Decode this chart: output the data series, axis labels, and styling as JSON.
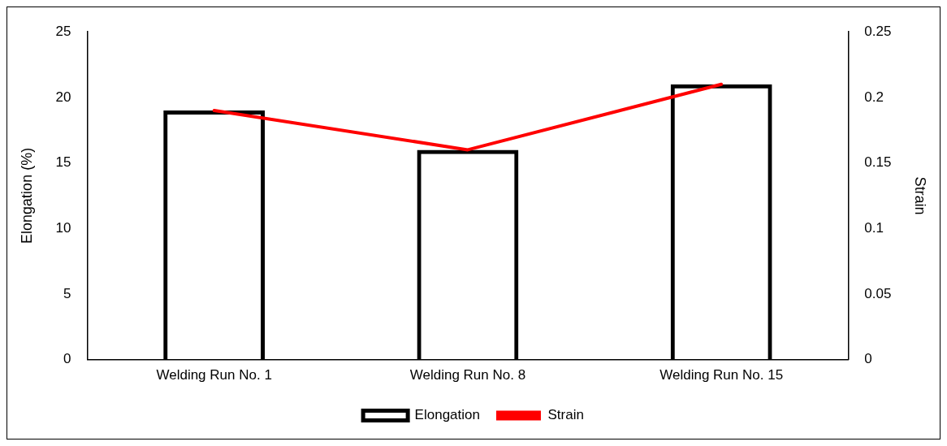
{
  "chart_data": {
    "type": "bar",
    "categories": [
      "Welding Run No. 1",
      "Welding Run No. 8",
      "Welding Run No. 15"
    ],
    "series": [
      {
        "name": "Elongation",
        "color": "#000000",
        "values": [
          19,
          16,
          21
        ]
      },
      {
        "name": "Strain",
        "type": "line",
        "axis": "y2",
        "color": "#ff0000",
        "values": [
          0.19,
          0.16,
          0.21
        ]
      }
    ],
    "ylabel": "Elongation (%)",
    "y2label": "Strain",
    "ylim": [
      0,
      25
    ],
    "yticks": [
      0,
      5,
      10,
      15,
      20,
      25
    ],
    "y2lim": [
      0,
      0.25
    ],
    "y2ticks": [
      0,
      0.05,
      0.1,
      0.15,
      0.2,
      0.25
    ],
    "legend": "bottom",
    "marker": "none"
  }
}
